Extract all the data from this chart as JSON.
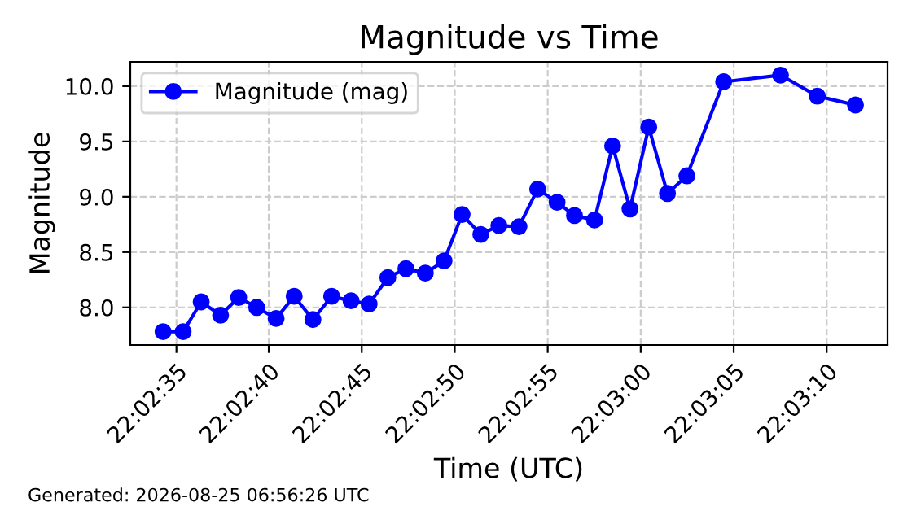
{
  "chart_data": {
    "type": "line",
    "title": "Magnitude vs Time",
    "xlabel": "Time (UTC)",
    "ylabel": "Magnitude",
    "x": [
      22.04286,
      22.04316,
      22.04343,
      22.04372,
      22.04399,
      22.04426,
      22.04455,
      22.04482,
      22.0451,
      22.04538,
      22.04567,
      22.04594,
      22.04622,
      22.04649,
      22.04678,
      22.04706,
      22.04733,
      22.04761,
      22.04788,
      22.04818,
      22.04846,
      22.04875,
      22.04901,
      22.04931,
      22.04958,
      22.04984,
      22.05012,
      22.0504,
      22.05069,
      22.05124,
      22.05209,
      22.05264,
      22.05321
    ],
    "series": [
      {
        "name": "Magnitude (mag)",
        "color": "#0000ff",
        "values": [
          7.78,
          7.78,
          8.05,
          7.93,
          8.09,
          8.0,
          7.9,
          8.1,
          7.89,
          8.1,
          8.06,
          8.03,
          8.27,
          8.35,
          8.31,
          8.42,
          8.84,
          8.66,
          8.74,
          8.73,
          9.07,
          8.95,
          8.83,
          8.79,
          9.46,
          8.89,
          9.63,
          9.03,
          9.19,
          10.04,
          10.1,
          9.91,
          9.83
        ]
      }
    ],
    "xlim": [
      22.04237,
      22.05369
    ],
    "xticks": [
      {
        "value": 22.04306,
        "label": "22:02:35"
      },
      {
        "value": 22.04444,
        "label": "22:02:40"
      },
      {
        "value": 22.04583,
        "label": "22:02:45"
      },
      {
        "value": 22.04722,
        "label": "22:02:50"
      },
      {
        "value": 22.04861,
        "label": "22:02:55"
      },
      {
        "value": 22.05,
        "label": "22:03:00"
      },
      {
        "value": 22.05139,
        "label": "22:03:05"
      },
      {
        "value": 22.05278,
        "label": "22:03:10"
      }
    ],
    "ylim": [
      7.66,
      10.22
    ],
    "yticks": [
      {
        "value": 8.0,
        "label": "8.0"
      },
      {
        "value": 8.5,
        "label": "8.5"
      },
      {
        "value": 9.0,
        "label": "9.0"
      },
      {
        "value": 9.5,
        "label": "9.5"
      },
      {
        "value": 10.0,
        "label": "10.0"
      }
    ],
    "grid": true,
    "legend": "top left",
    "marker": "circle",
    "line_style": "solid",
    "annotations": [
      "Generated: 2026-08-25 06:56:26 UTC"
    ]
  }
}
